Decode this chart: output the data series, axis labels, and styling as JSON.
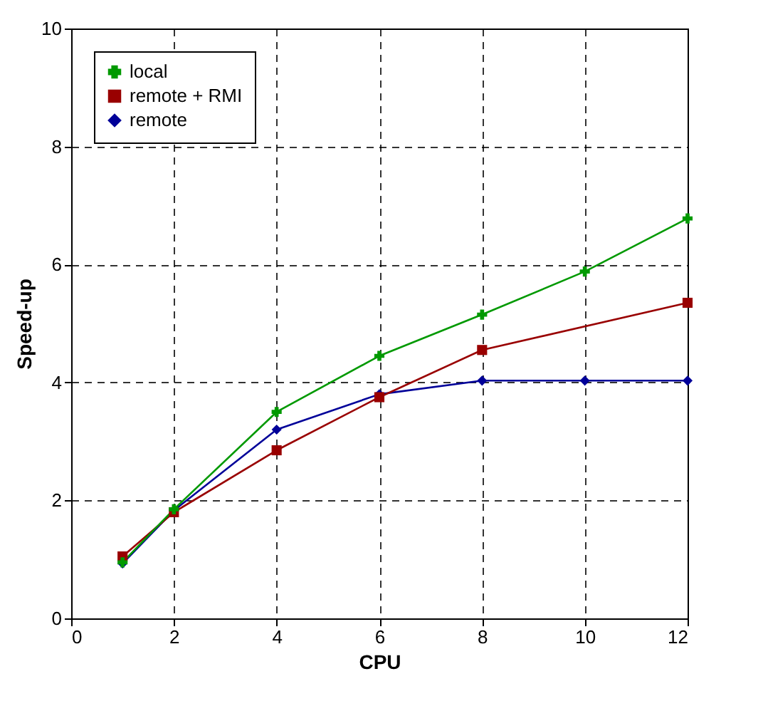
{
  "chart_data": {
    "type": "line",
    "xlabel": "CPU",
    "ylabel": "Speed-up",
    "xlim": [
      0,
      12
    ],
    "xticks": [
      0,
      2,
      4,
      6,
      8,
      10,
      12
    ],
    "ylim": [
      0,
      10
    ],
    "yticks": [
      0,
      2,
      4,
      6,
      8,
      10
    ],
    "grid": true,
    "legend": "top left",
    "line_style": "solid",
    "series": [
      {
        "name": "local",
        "color": "#009900",
        "marker": "cross",
        "x": [
          1,
          2,
          4,
          6,
          8,
          10,
          12
        ],
        "values": [
          0.95,
          1.85,
          3.5,
          4.45,
          5.15,
          5.88,
          6.78
        ]
      },
      {
        "name": "remote + RMI",
        "color": "#990000",
        "marker": "square",
        "x": [
          1,
          2,
          4,
          6,
          8,
          12
        ],
        "values": [
          1.05,
          1.8,
          2.85,
          3.75,
          4.55,
          5.35
        ]
      },
      {
        "name": "remote",
        "color": "#000099",
        "marker": "diamond",
        "x": [
          1,
          2,
          4,
          6,
          8,
          10,
          12
        ],
        "values": [
          0.93,
          1.83,
          3.2,
          3.8,
          4.03,
          4.03,
          4.03
        ]
      }
    ]
  }
}
